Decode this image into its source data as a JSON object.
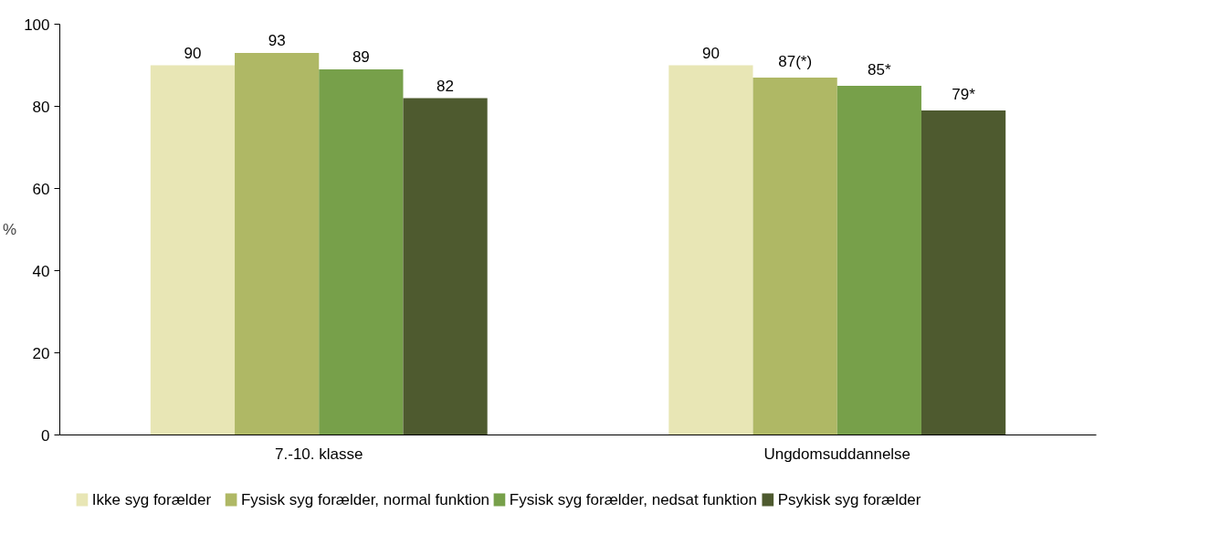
{
  "chart_data": {
    "type": "bar",
    "ylabel": "%",
    "categories": [
      "7.-10. klasse",
      "Ungdomsuddannelse"
    ],
    "ylim": [
      0,
      100
    ],
    "yticks": [
      0,
      20,
      40,
      60,
      80,
      100
    ],
    "grid": false,
    "legend": "bottom",
    "series": [
      {
        "name": "Ikke syg forælder",
        "color": "#e8e6b5",
        "values": [
          90,
          90
        ],
        "value_labels": [
          "90",
          "90"
        ]
      },
      {
        "name": "Fysisk syg forælder, normal funktion",
        "color": "#afb865",
        "values": [
          93,
          87
        ],
        "value_labels": [
          "93",
          "87(*)"
        ]
      },
      {
        "name": "Fysisk syg forælder, nedsat funktion",
        "color": "#77a04a",
        "values": [
          89,
          85
        ],
        "value_labels": [
          "89",
          "85*"
        ]
      },
      {
        "name": "Psykisk syg forælder",
        "color": "#4e5a2f",
        "values": [
          82,
          79
        ],
        "value_labels": [
          "82",
          "79*"
        ]
      }
    ]
  }
}
